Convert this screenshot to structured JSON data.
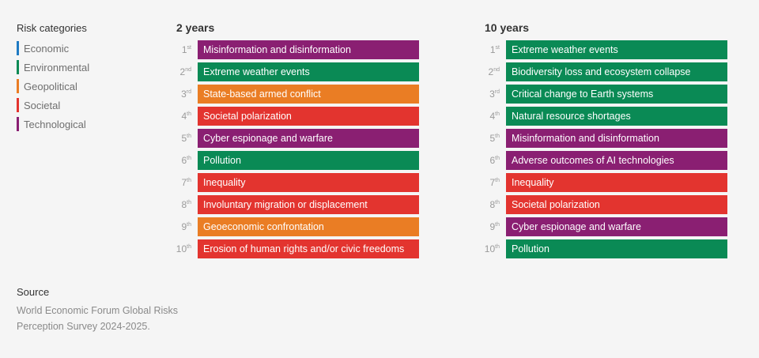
{
  "legend": {
    "title": "Risk categories",
    "items": [
      {
        "label": "Economic",
        "color": "#1f7ac3"
      },
      {
        "label": "Environmental",
        "color": "#0a8a55"
      },
      {
        "label": "Geopolitical",
        "color": "#ea7d24"
      },
      {
        "label": "Societal",
        "color": "#e3342f"
      },
      {
        "label": "Technological",
        "color": "#8a1f72"
      }
    ]
  },
  "chart_data": {
    "type": "table",
    "columns": [
      {
        "title": "2 years",
        "rows": [
          {
            "rank": "1",
            "suffix": "st",
            "label": "Misinformation and disinformation",
            "category": "Technological"
          },
          {
            "rank": "2",
            "suffix": "nd",
            "label": "Extreme weather events",
            "category": "Environmental"
          },
          {
            "rank": "3",
            "suffix": "rd",
            "label": "State-based armed conflict",
            "category": "Geopolitical"
          },
          {
            "rank": "4",
            "suffix": "th",
            "label": "Societal polarization",
            "category": "Societal"
          },
          {
            "rank": "5",
            "suffix": "th",
            "label": "Cyber espionage and warfare",
            "category": "Technological"
          },
          {
            "rank": "6",
            "suffix": "th",
            "label": "Pollution",
            "category": "Environmental"
          },
          {
            "rank": "7",
            "suffix": "th",
            "label": "Inequality",
            "category": "Societal"
          },
          {
            "rank": "8",
            "suffix": "th",
            "label": "Involuntary migration or displacement",
            "category": "Societal"
          },
          {
            "rank": "9",
            "suffix": "th",
            "label": "Geoeconomic confrontation",
            "category": "Geopolitical"
          },
          {
            "rank": "10",
            "suffix": "th",
            "label": "Erosion of human rights and/or civic freedoms",
            "category": "Societal"
          }
        ]
      },
      {
        "title": "10 years",
        "rows": [
          {
            "rank": "1",
            "suffix": "st",
            "label": "Extreme weather events",
            "category": "Environmental"
          },
          {
            "rank": "2",
            "suffix": "nd",
            "label": "Biodiversity loss and ecosystem collapse",
            "category": "Environmental"
          },
          {
            "rank": "3",
            "suffix": "rd",
            "label": "Critical change to Earth systems",
            "category": "Environmental"
          },
          {
            "rank": "4",
            "suffix": "th",
            "label": "Natural resource shortages",
            "category": "Environmental"
          },
          {
            "rank": "5",
            "suffix": "th",
            "label": "Misinformation and disinformation",
            "category": "Technological"
          },
          {
            "rank": "6",
            "suffix": "th",
            "label": "Adverse outcomes of AI technologies",
            "category": "Technological"
          },
          {
            "rank": "7",
            "suffix": "th",
            "label": "Inequality",
            "category": "Societal"
          },
          {
            "rank": "8",
            "suffix": "th",
            "label": "Societal polarization",
            "category": "Societal"
          },
          {
            "rank": "9",
            "suffix": "th",
            "label": "Cyber espionage and warfare",
            "category": "Technological"
          },
          {
            "rank": "10",
            "suffix": "th",
            "label": "Pollution",
            "category": "Environmental"
          }
        ]
      }
    ]
  },
  "source": {
    "title": "Source",
    "text": "World Economic Forum Global Risks Perception Survey 2024-2025."
  }
}
